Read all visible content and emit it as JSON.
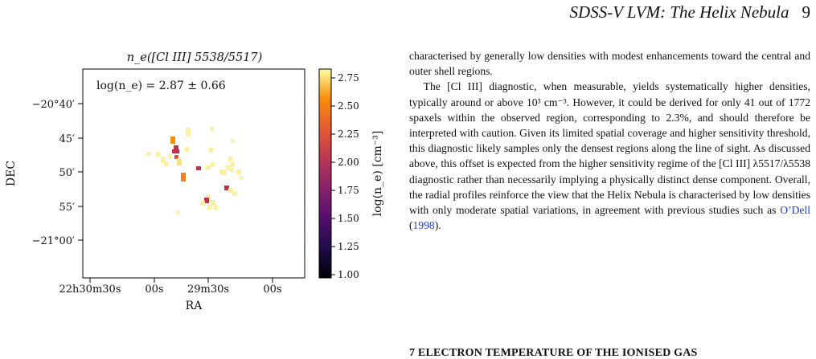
{
  "header": {
    "running_title": "SDSS-V LVM: The Helix Nebula",
    "page_number": "9"
  },
  "figure": {
    "panel_title": "n_e([Cl III] 5538/5517)",
    "annotation": "log(n_e) = 2.87 ± 0.66",
    "chart_data": {
      "type": "heatmap",
      "title": "n_e([Cl III] 5538/5517)",
      "xlabel": "RA",
      "ylabel": "DEC",
      "x_ticks": [
        "22h30m30s",
        "00s",
        "29m30s",
        "00s"
      ],
      "y_ticks": [
        "−20°40′",
        "45′",
        "50′",
        "55′",
        "−21°00′"
      ],
      "colorbar": {
        "label": "log(n_e) [cm⁻³]",
        "range": [
          1.0,
          2.8
        ],
        "ticks": [
          "2.75",
          "2.50",
          "2.25",
          "2.00",
          "1.75",
          "1.50",
          "1.25",
          "1.00"
        ],
        "colormap": "inferno"
      },
      "annotation": "log(n_e) = 2.87 ± 0.66"
    }
  },
  "body": {
    "p1": "characterised by generally low densities with modest enhancements toward the central and outer shell regions.",
    "p2": "The [Cl III] diagnostic, when measurable, yields systematically higher densities, typically around or above 10³ cm⁻³. However, it could be derived for only 41 out of 1772 spaxels within the observed region, corresponding to 2.3%, and should therefore be interpreted with caution. Given its limited spatial coverage and higher sensitivity threshold, this diagnostic likely samples only the densest regions along the line of sight. As discussed above, this offset is expected from the higher sensitivity regime of the [Cl III] λ5517/λ5538 diagnostic rather than necessarily implying a physically distinct dense component. Overall, the radial profiles reinforce the view that the Helix Nebula is characterised by low densities with only moderate spatial variations, in agreement with previous studies such as",
    "cite_author": "O’Dell",
    "cite_year": "1998",
    "p2_end": "."
  },
  "next_section": "7 ELECTRON TEMPERATURE OF THE IONISED GAS"
}
